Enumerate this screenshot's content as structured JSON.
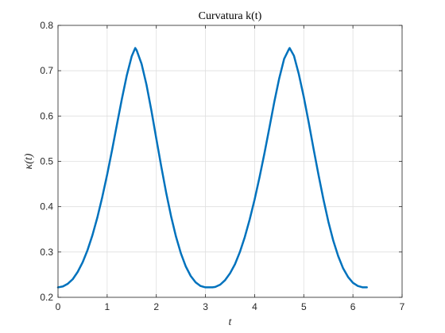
{
  "chart_data": {
    "type": "line",
    "title": "Curvatura k(t)",
    "xlabel": "t",
    "ylabel": "κ(t)",
    "xlim": [
      0,
      7
    ],
    "ylim": [
      0.2,
      0.8
    ],
    "xticks": [
      0,
      1,
      2,
      3,
      4,
      5,
      6,
      7
    ],
    "yticks": [
      0.2,
      0.3,
      0.4,
      0.5,
      0.6,
      0.7,
      0.8
    ],
    "xtick_labels": [
      "0",
      "1",
      "2",
      "3",
      "4",
      "5",
      "6",
      "7"
    ],
    "ytick_labels": [
      "0.2",
      "0.3",
      "0.4",
      "0.5",
      "0.6",
      "0.7",
      "0.8"
    ],
    "grid": true,
    "series": [
      {
        "color": "#0072BD",
        "x": [
          0,
          0.1,
          0.2,
          0.3,
          0.4,
          0.5,
          0.6,
          0.7,
          0.8,
          0.9,
          1.0,
          1.1,
          1.2,
          1.3,
          1.4,
          1.5,
          1.5708,
          1.6,
          1.7,
          1.8,
          1.9,
          2.0,
          2.1,
          2.2,
          2.3,
          2.4,
          2.5,
          2.6,
          2.7,
          2.8,
          2.9,
          3.0,
          3.1,
          3.1416,
          3.2,
          3.3,
          3.4,
          3.5,
          3.6,
          3.7,
          3.8,
          3.9,
          4.0,
          4.1,
          4.2,
          4.3,
          4.4,
          4.5,
          4.6,
          4.7,
          4.7124,
          4.8,
          4.9,
          5.0,
          5.1,
          5.2,
          5.3,
          5.4,
          5.5,
          5.6,
          5.7,
          5.8,
          5.9,
          6.0,
          6.1,
          6.2,
          6.2832
        ],
        "y": [
          0.222,
          0.224,
          0.23,
          0.24,
          0.256,
          0.277,
          0.304,
          0.337,
          0.376,
          0.421,
          0.471,
          0.525,
          0.582,
          0.638,
          0.69,
          0.732,
          0.75,
          0.745,
          0.715,
          0.669,
          0.612,
          0.55,
          0.489,
          0.431,
          0.379,
          0.334,
          0.297,
          0.268,
          0.247,
          0.233,
          0.225,
          0.222,
          0.222,
          0.222,
          0.223,
          0.228,
          0.238,
          0.253,
          0.273,
          0.3,
          0.333,
          0.372,
          0.416,
          0.465,
          0.518,
          0.574,
          0.631,
          0.683,
          0.726,
          0.748,
          0.75,
          0.733,
          0.692,
          0.642,
          0.586,
          0.527,
          0.47,
          0.416,
          0.367,
          0.325,
          0.291,
          0.264,
          0.245,
          0.232,
          0.225,
          0.222,
          0.222
        ]
      }
    ]
  }
}
